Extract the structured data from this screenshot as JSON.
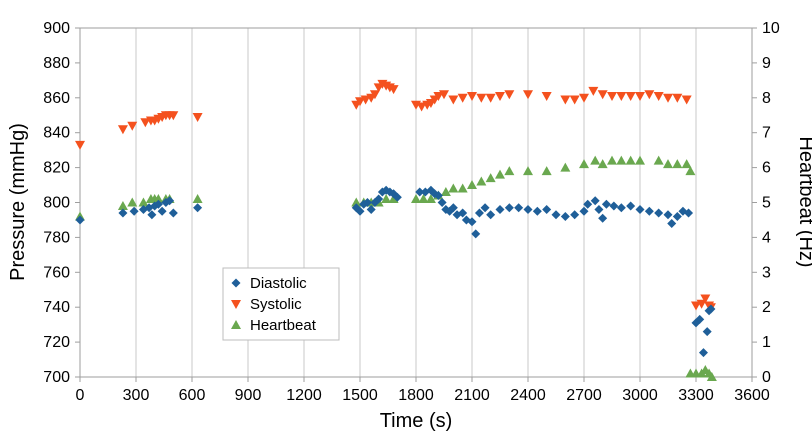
{
  "chart_data": {
    "type": "scatter",
    "title": "",
    "xlabel": "Time (s)",
    "ylabel": "Pressure  (mmHg)",
    "y2label": "Heartbeat  (Hz)",
    "xlim": [
      0,
      3600
    ],
    "ylim": [
      700,
      900
    ],
    "y2lim": [
      0,
      10
    ],
    "xticks": [
      0,
      300,
      600,
      900,
      1200,
      1500,
      1800,
      2100,
      2400,
      2700,
      3000,
      3300,
      3600
    ],
    "yticks": [
      700,
      720,
      740,
      760,
      780,
      800,
      820,
      840,
      860,
      880,
      900
    ],
    "y2ticks": [
      0,
      1,
      2,
      3,
      4,
      5,
      6,
      7,
      8,
      9,
      10
    ],
    "grid": "vertical gridlines",
    "legend": {
      "position": "center-left",
      "entries": [
        "Diastolic",
        "Systolic",
        "Heartbeat"
      ]
    },
    "colors": {
      "Diastolic": "#1f5f99",
      "Systolic": "#f4511e",
      "Heartbeat": "#6aa84f"
    },
    "series": [
      {
        "name": "Diastolic",
        "marker": "diamond",
        "axis": "left",
        "points": [
          [
            0,
            790
          ],
          [
            230,
            794
          ],
          [
            290,
            795
          ],
          [
            340,
            796
          ],
          [
            370,
            797
          ],
          [
            385,
            793
          ],
          [
            400,
            798
          ],
          [
            420,
            799
          ],
          [
            440,
            795
          ],
          [
            460,
            800
          ],
          [
            480,
            801
          ],
          [
            500,
            794
          ],
          [
            630,
            797
          ],
          [
            1480,
            797
          ],
          [
            1500,
            795
          ],
          [
            1520,
            799
          ],
          [
            1540,
            800
          ],
          [
            1560,
            796
          ],
          [
            1580,
            800
          ],
          [
            1600,
            802
          ],
          [
            1620,
            806
          ],
          [
            1640,
            807
          ],
          [
            1660,
            806
          ],
          [
            1680,
            805
          ],
          [
            1700,
            803
          ],
          [
            1820,
            806
          ],
          [
            1850,
            806
          ],
          [
            1880,
            807
          ],
          [
            1900,
            805
          ],
          [
            1920,
            804
          ],
          [
            1940,
            800
          ],
          [
            1960,
            796
          ],
          [
            1980,
            795
          ],
          [
            2000,
            797
          ],
          [
            2020,
            793
          ],
          [
            2050,
            794
          ],
          [
            2070,
            790
          ],
          [
            2100,
            789
          ],
          [
            2120,
            782
          ],
          [
            2140,
            794
          ],
          [
            2170,
            797
          ],
          [
            2200,
            793
          ],
          [
            2250,
            796
          ],
          [
            2300,
            797
          ],
          [
            2350,
            797
          ],
          [
            2400,
            796
          ],
          [
            2450,
            795
          ],
          [
            2500,
            796
          ],
          [
            2550,
            793
          ],
          [
            2600,
            792
          ],
          [
            2650,
            793
          ],
          [
            2700,
            795
          ],
          [
            2720,
            799
          ],
          [
            2760,
            801
          ],
          [
            2780,
            796
          ],
          [
            2800,
            791
          ],
          [
            2820,
            799
          ],
          [
            2860,
            798
          ],
          [
            2900,
            797
          ],
          [
            2950,
            798
          ],
          [
            3000,
            796
          ],
          [
            3050,
            795
          ],
          [
            3100,
            794
          ],
          [
            3150,
            793
          ],
          [
            3170,
            788
          ],
          [
            3200,
            792
          ],
          [
            3230,
            795
          ],
          [
            3260,
            794
          ],
          [
            3300,
            731
          ],
          [
            3320,
            733
          ],
          [
            3340,
            714
          ],
          [
            3360,
            726
          ],
          [
            3370,
            738
          ],
          [
            3380,
            739
          ]
        ]
      },
      {
        "name": "Systolic",
        "marker": "triangle-down",
        "axis": "left",
        "points": [
          [
            0,
            833
          ],
          [
            230,
            842
          ],
          [
            280,
            844
          ],
          [
            350,
            846
          ],
          [
            380,
            847
          ],
          [
            400,
            847
          ],
          [
            420,
            848
          ],
          [
            440,
            849
          ],
          [
            460,
            850
          ],
          [
            480,
            850
          ],
          [
            500,
            850
          ],
          [
            630,
            849
          ],
          [
            1480,
            856
          ],
          [
            1500,
            858
          ],
          [
            1530,
            859
          ],
          [
            1560,
            860
          ],
          [
            1580,
            862
          ],
          [
            1600,
            866
          ],
          [
            1620,
            868
          ],
          [
            1640,
            867
          ],
          [
            1660,
            866
          ],
          [
            1680,
            865
          ],
          [
            1800,
            856
          ],
          [
            1830,
            855
          ],
          [
            1860,
            856
          ],
          [
            1880,
            857
          ],
          [
            1900,
            859
          ],
          [
            1920,
            861
          ],
          [
            1950,
            862
          ],
          [
            2000,
            859
          ],
          [
            2050,
            860
          ],
          [
            2100,
            861
          ],
          [
            2150,
            860
          ],
          [
            2200,
            860
          ],
          [
            2250,
            861
          ],
          [
            2300,
            862
          ],
          [
            2400,
            862
          ],
          [
            2500,
            861
          ],
          [
            2600,
            859
          ],
          [
            2650,
            859
          ],
          [
            2700,
            860
          ],
          [
            2750,
            864
          ],
          [
            2800,
            862
          ],
          [
            2850,
            861
          ],
          [
            2900,
            861
          ],
          [
            2950,
            861
          ],
          [
            3000,
            861
          ],
          [
            3050,
            862
          ],
          [
            3100,
            861
          ],
          [
            3150,
            860
          ],
          [
            3200,
            860
          ],
          [
            3250,
            859
          ],
          [
            3300,
            741
          ],
          [
            3330,
            742
          ],
          [
            3350,
            745
          ],
          [
            3370,
            741
          ],
          [
            3380,
            740
          ]
        ]
      },
      {
        "name": "Heartbeat",
        "marker": "triangle-up",
        "axis": "right",
        "points": [
          [
            0,
            4.6
          ],
          [
            230,
            4.9
          ],
          [
            280,
            5.0
          ],
          [
            340,
            5.0
          ],
          [
            380,
            5.1
          ],
          [
            400,
            5.1
          ],
          [
            420,
            5.1
          ],
          [
            460,
            5.1
          ],
          [
            480,
            5.1
          ],
          [
            630,
            5.1
          ],
          [
            1480,
            5.0
          ],
          [
            1520,
            5.0
          ],
          [
            1560,
            5.0
          ],
          [
            1600,
            5.0
          ],
          [
            1640,
            5.1
          ],
          [
            1680,
            5.1
          ],
          [
            1800,
            5.1
          ],
          [
            1840,
            5.1
          ],
          [
            1880,
            5.1
          ],
          [
            1920,
            5.2
          ],
          [
            1960,
            5.3
          ],
          [
            2000,
            5.4
          ],
          [
            2050,
            5.4
          ],
          [
            2100,
            5.5
          ],
          [
            2150,
            5.6
          ],
          [
            2200,
            5.7
          ],
          [
            2250,
            5.8
          ],
          [
            2300,
            5.9
          ],
          [
            2400,
            5.9
          ],
          [
            2500,
            5.9
          ],
          [
            2600,
            6.0
          ],
          [
            2700,
            6.1
          ],
          [
            2760,
            6.2
          ],
          [
            2800,
            6.1
          ],
          [
            2850,
            6.2
          ],
          [
            2900,
            6.2
          ],
          [
            2950,
            6.2
          ],
          [
            3000,
            6.2
          ],
          [
            3100,
            6.2
          ],
          [
            3150,
            6.1
          ],
          [
            3200,
            6.1
          ],
          [
            3250,
            6.1
          ],
          [
            3270,
            5.9
          ],
          [
            3270,
            0.1
          ],
          [
            3300,
            0.1
          ],
          [
            3330,
            0.1
          ],
          [
            3350,
            0.2
          ],
          [
            3370,
            0.1
          ],
          [
            3385,
            0.0
          ]
        ]
      }
    ]
  }
}
